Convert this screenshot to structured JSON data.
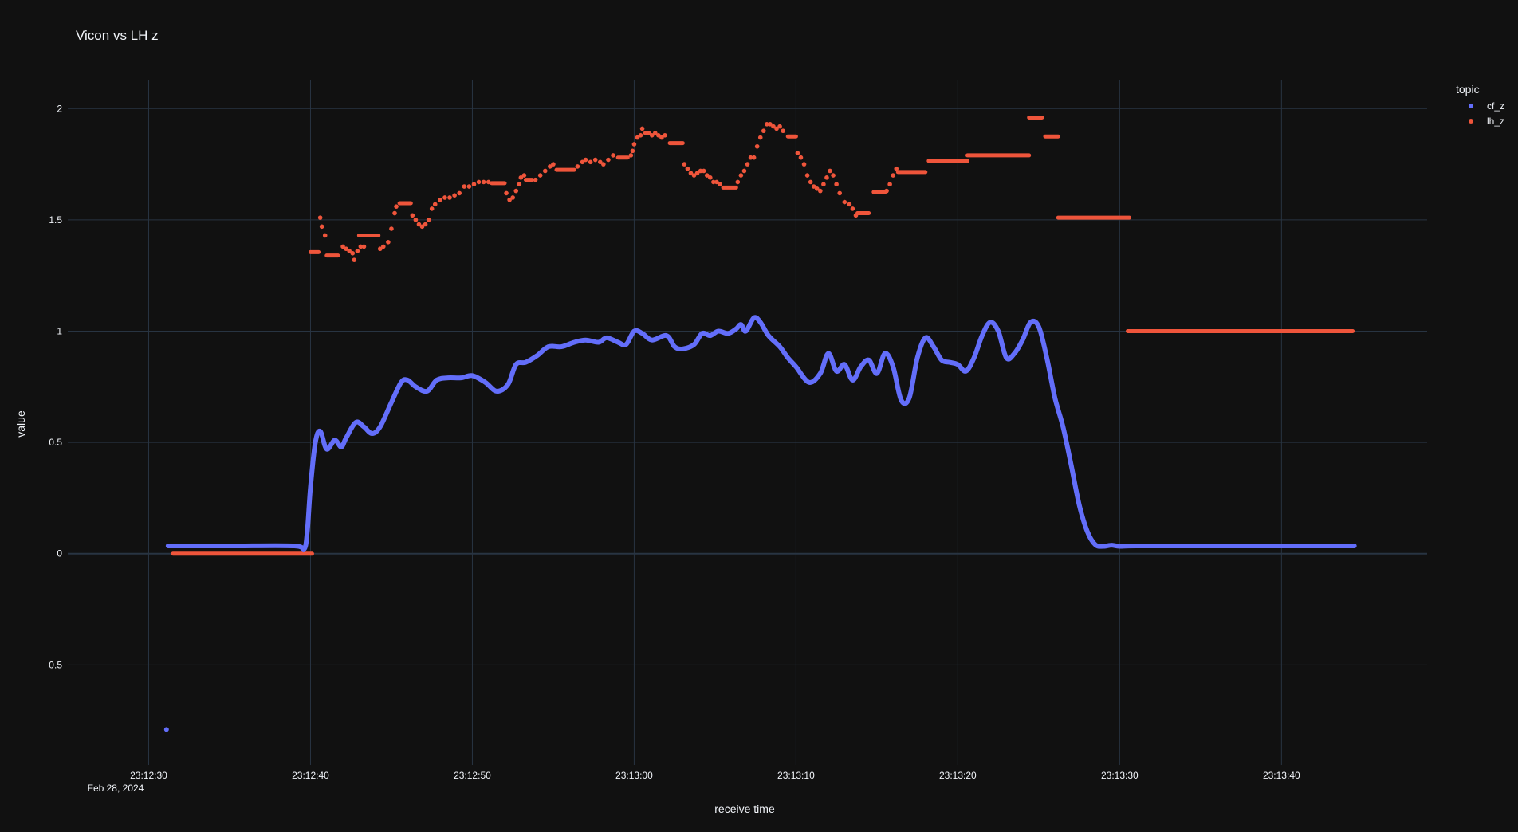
{
  "chart_data": {
    "type": "scatter",
    "title": "Vicon vs LH z",
    "xlabel": "receive time",
    "ylabel": "value",
    "x_date_label": "Feb 28, 2024",
    "xlim": [
      "23:12:25",
      "23:13:49"
    ],
    "ylim": [
      -0.95,
      2.13
    ],
    "x_ticks": [
      "23:12:30",
      "23:12:40",
      "23:12:50",
      "23:13:00",
      "23:13:10",
      "23:13:20",
      "23:13:30",
      "23:13:40"
    ],
    "y_ticks": [
      2,
      1.5,
      1,
      0.5,
      0,
      -0.5
    ],
    "y_tick_labels": [
      "2",
      "1.5",
      "1",
      "0.5",
      "0",
      "−0.5"
    ],
    "grid": true,
    "legend_title": "topic",
    "legend_position": "top-right",
    "colors": {
      "background": "#111111",
      "grid": "#283442",
      "zeroline": "#283442",
      "cf_z": "#636efa",
      "lh_z": "#ef553b"
    },
    "series": [
      {
        "name": "cf_z",
        "color": "#636efa",
        "points": [
          [
            "23:12:31.1",
            -0.79
          ],
          [
            "23:12:31.2",
            0.035
          ],
          [
            "23:12:35.0",
            0.035
          ],
          [
            "23:12:39.0",
            0.035
          ],
          [
            "23:12:39.6",
            0.02
          ],
          [
            "23:12:39.8",
            0.1
          ],
          [
            "23:12:40.0",
            0.3
          ],
          [
            "23:12:40.3",
            0.5
          ],
          [
            "23:12:40.6",
            0.55
          ],
          [
            "23:12:41.0",
            0.47
          ],
          [
            "23:12:41.5",
            0.51
          ],
          [
            "23:12:41.9",
            0.48
          ],
          [
            "23:12:42.2",
            0.52
          ],
          [
            "23:12:42.8",
            0.59
          ],
          [
            "23:12:43.3",
            0.57
          ],
          [
            "23:12:43.8",
            0.54
          ],
          [
            "23:12:44.3",
            0.57
          ],
          [
            "23:12:45.0",
            0.68
          ],
          [
            "23:12:45.6",
            0.77
          ],
          [
            "23:12:46.0",
            0.78
          ],
          [
            "23:12:46.5",
            0.75
          ],
          [
            "23:12:47.2",
            0.73
          ],
          [
            "23:12:47.8",
            0.78
          ],
          [
            "23:12:48.5",
            0.79
          ],
          [
            "23:12:49.3",
            0.79
          ],
          [
            "23:12:50.0",
            0.8
          ],
          [
            "23:12:50.8",
            0.77
          ],
          [
            "23:12:51.5",
            0.73
          ],
          [
            "23:12:52.2",
            0.76
          ],
          [
            "23:12:52.7",
            0.85
          ],
          [
            "23:12:53.3",
            0.86
          ],
          [
            "23:12:54.0",
            0.89
          ],
          [
            "23:12:54.7",
            0.93
          ],
          [
            "23:12:55.5",
            0.93
          ],
          [
            "23:12:56.3",
            0.95
          ],
          [
            "23:12:57.0",
            0.96
          ],
          [
            "23:12:57.8",
            0.95
          ],
          [
            "23:12:58.3",
            0.97
          ],
          [
            "23:12:59.0",
            0.95
          ],
          [
            "23:12:59.5",
            0.94
          ],
          [
            "23:13:00.0",
            1.0
          ],
          [
            "23:13:00.5",
            0.99
          ],
          [
            "23:13:01.1",
            0.96
          ],
          [
            "23:13:02.0",
            0.98
          ],
          [
            "23:13:02.5",
            0.93
          ],
          [
            "23:13:03.0",
            0.92
          ],
          [
            "23:13:03.7",
            0.94
          ],
          [
            "23:13:04.2",
            0.99
          ],
          [
            "23:13:04.7",
            0.98
          ],
          [
            "23:13:05.2",
            1.0
          ],
          [
            "23:13:05.8",
            0.99
          ],
          [
            "23:13:06.3",
            1.01
          ],
          [
            "23:13:06.6",
            1.03
          ],
          [
            "23:13:06.9",
            1.0
          ],
          [
            "23:13:07.4",
            1.06
          ],
          [
            "23:13:07.8",
            1.04
          ],
          [
            "23:13:08.3",
            0.98
          ],
          [
            "23:13:09.0",
            0.93
          ],
          [
            "23:13:09.5",
            0.88
          ],
          [
            "23:13:10.0",
            0.84
          ],
          [
            "23:13:10.8",
            0.77
          ],
          [
            "23:13:11.5",
            0.81
          ],
          [
            "23:13:12.0",
            0.9
          ],
          [
            "23:13:12.5",
            0.82
          ],
          [
            "23:13:13.0",
            0.85
          ],
          [
            "23:13:13.5",
            0.78
          ],
          [
            "23:13:14.0",
            0.84
          ],
          [
            "23:13:14.5",
            0.87
          ],
          [
            "23:13:15.0",
            0.81
          ],
          [
            "23:13:15.5",
            0.9
          ],
          [
            "23:13:16.0",
            0.84
          ],
          [
            "23:13:16.5",
            0.69
          ],
          [
            "23:13:17.0",
            0.7
          ],
          [
            "23:13:17.5",
            0.88
          ],
          [
            "23:13:18.0",
            0.97
          ],
          [
            "23:13:18.5",
            0.93
          ],
          [
            "23:13:19.0",
            0.87
          ],
          [
            "23:13:19.5",
            0.86
          ],
          [
            "23:13:20.0",
            0.85
          ],
          [
            "23:13:20.5",
            0.82
          ],
          [
            "23:13:21.0",
            0.88
          ],
          [
            "23:13:21.5",
            0.98
          ],
          [
            "23:13:22.0",
            1.04
          ],
          [
            "23:13:22.5",
            1.0
          ],
          [
            "23:13:23.0",
            0.88
          ],
          [
            "23:13:23.5",
            0.9
          ],
          [
            "23:13:24.0",
            0.96
          ],
          [
            "23:13:24.5",
            1.04
          ],
          [
            "23:13:25.0",
            1.02
          ],
          [
            "23:13:25.5",
            0.88
          ],
          [
            "23:13:26.0",
            0.7
          ],
          [
            "23:13:26.5",
            0.57
          ],
          [
            "23:13:27.0",
            0.4
          ],
          [
            "23:13:27.5",
            0.22
          ],
          [
            "23:13:28.0",
            0.1
          ],
          [
            "23:13:28.5",
            0.04
          ],
          [
            "23:13:29.0",
            0.033
          ],
          [
            "23:13:29.5",
            0.038
          ],
          [
            "23:13:30.0",
            0.033
          ],
          [
            "23:13:31.0",
            0.035
          ],
          [
            "23:13:35.0",
            0.035
          ],
          [
            "23:13:40.0",
            0.035
          ],
          [
            "23:13:44.5",
            0.035
          ]
        ]
      },
      {
        "name": "lh_z",
        "color": "#ef553b",
        "segments": [
          [
            [
              "23:12:31.5",
              0.0
            ],
            [
              "23:12:40.1",
              0.0
            ]
          ],
          [
            [
              "23:12:40.0",
              1.355
            ],
            [
              "23:12:40.5",
              1.355
            ]
          ],
          [
            [
              "23:12:41.0",
              1.34
            ],
            [
              "23:12:41.7",
              1.34
            ]
          ],
          [
            [
              "23:12:43.0",
              1.43
            ],
            [
              "23:12:44.2",
              1.43
            ]
          ],
          [
            [
              "23:12:45.5",
              1.575
            ],
            [
              "23:12:46.2",
              1.575
            ]
          ],
          [
            [
              "23:12:51.2",
              1.665
            ],
            [
              "23:12:52.0",
              1.665
            ]
          ],
          [
            [
              "23:12:53.3",
              1.68
            ],
            [
              "23:12:53.7",
              1.68
            ]
          ],
          [
            [
              "23:12:55.2",
              1.725
            ],
            [
              "23:12:56.3",
              1.725
            ]
          ],
          [
            [
              "23:12:59.0",
              1.78
            ],
            [
              "23:12:59.6",
              1.78
            ]
          ],
          [
            [
              "23:13:02.2",
              1.845
            ],
            [
              "23:13:03.0",
              1.845
            ]
          ],
          [
            [
              "23:13:05.5",
              1.645
            ],
            [
              "23:13:06.3",
              1.645
            ]
          ],
          [
            [
              "23:13:09.5",
              1.875
            ],
            [
              "23:13:10.0",
              1.875
            ]
          ],
          [
            [
              "23:13:13.8",
              1.53
            ],
            [
              "23:13:14.5",
              1.53
            ]
          ],
          [
            [
              "23:13:14.8",
              1.625
            ],
            [
              "23:13:15.5",
              1.625
            ]
          ],
          [
            [
              "23:13:16.3",
              1.715
            ],
            [
              "23:13:18.0",
              1.715
            ]
          ],
          [
            [
              "23:13:18.2",
              1.765
            ],
            [
              "23:13:20.6",
              1.765
            ]
          ],
          [
            [
              "23:13:20.6",
              1.79
            ],
            [
              "23:13:24.4",
              1.79
            ]
          ],
          [
            [
              "23:13:24.4",
              1.96
            ],
            [
              "23:13:25.2",
              1.96
            ]
          ],
          [
            [
              "23:13:25.4",
              1.875
            ],
            [
              "23:13:26.2",
              1.875
            ]
          ],
          [
            [
              "23:13:26.2",
              1.51
            ],
            [
              "23:13:30.6",
              1.51
            ]
          ],
          [
            [
              "23:13:30.5",
              1.0
            ],
            [
              "23:13:44.4",
              1.0
            ]
          ]
        ],
        "points": [
          [
            "23:12:40.6",
            1.51
          ],
          [
            "23:12:40.7",
            1.47
          ],
          [
            "23:12:40.9",
            1.43
          ],
          [
            "23:12:42.0",
            1.38
          ],
          [
            "23:12:42.2",
            1.37
          ],
          [
            "23:12:42.4",
            1.36
          ],
          [
            "23:12:42.6",
            1.35
          ],
          [
            "23:12:42.7",
            1.32
          ],
          [
            "23:12:42.9",
            1.36
          ],
          [
            "23:12:43.1",
            1.38
          ],
          [
            "23:12:43.3",
            1.38
          ],
          [
            "23:12:44.3",
            1.37
          ],
          [
            "23:12:44.5",
            1.38
          ],
          [
            "23:12:44.8",
            1.4
          ],
          [
            "23:12:45.0",
            1.46
          ],
          [
            "23:12:45.2",
            1.53
          ],
          [
            "23:12:45.3",
            1.56
          ],
          [
            "23:12:46.3",
            1.52
          ],
          [
            "23:12:46.5",
            1.5
          ],
          [
            "23:12:46.7",
            1.48
          ],
          [
            "23:12:46.9",
            1.47
          ],
          [
            "23:12:47.1",
            1.48
          ],
          [
            "23:12:47.3",
            1.5
          ],
          [
            "23:12:47.5",
            1.55
          ],
          [
            "23:12:47.7",
            1.57
          ],
          [
            "23:12:48.0",
            1.59
          ],
          [
            "23:12:48.3",
            1.6
          ],
          [
            "23:12:48.6",
            1.6
          ],
          [
            "23:12:48.9",
            1.61
          ],
          [
            "23:12:49.2",
            1.62
          ],
          [
            "23:12:49.5",
            1.65
          ],
          [
            "23:12:49.8",
            1.65
          ],
          [
            "23:12:50.1",
            1.66
          ],
          [
            "23:12:50.4",
            1.67
          ],
          [
            "23:12:50.7",
            1.67
          ],
          [
            "23:12:51.0",
            1.67
          ],
          [
            "23:12:52.1",
            1.62
          ],
          [
            "23:12:52.3",
            1.59
          ],
          [
            "23:12:52.5",
            1.6
          ],
          [
            "23:12:52.7",
            1.63
          ],
          [
            "23:12:52.9",
            1.66
          ],
          [
            "23:12:53.0",
            1.69
          ],
          [
            "23:12:53.2",
            1.7
          ],
          [
            "23:12:53.9",
            1.68
          ],
          [
            "23:12:54.2",
            1.7
          ],
          [
            "23:12:54.5",
            1.72
          ],
          [
            "23:12:54.8",
            1.74
          ],
          [
            "23:12:55.0",
            1.75
          ],
          [
            "23:12:56.5",
            1.74
          ],
          [
            "23:12:56.8",
            1.76
          ],
          [
            "23:12:57.0",
            1.77
          ],
          [
            "23:12:57.3",
            1.76
          ],
          [
            "23:12:57.6",
            1.77
          ],
          [
            "23:12:57.9",
            1.76
          ],
          [
            "23:12:58.1",
            1.75
          ],
          [
            "23:12:58.4",
            1.77
          ],
          [
            "23:12:58.7",
            1.79
          ],
          [
            "23:12:59.8",
            1.79
          ],
          [
            "23:12:59.9",
            1.81
          ],
          [
            "23:13:00.0",
            1.84
          ],
          [
            "23:13:00.2",
            1.87
          ],
          [
            "23:13:00.4",
            1.88
          ],
          [
            "23:13:00.5",
            1.91
          ],
          [
            "23:13:00.7",
            1.89
          ],
          [
            "23:13:00.9",
            1.89
          ],
          [
            "23:13:01.1",
            1.88
          ],
          [
            "23:13:01.3",
            1.89
          ],
          [
            "23:13:01.5",
            1.88
          ],
          [
            "23:13:01.7",
            1.87
          ],
          [
            "23:13:01.9",
            1.88
          ],
          [
            "23:13:03.1",
            1.75
          ],
          [
            "23:13:03.3",
            1.73
          ],
          [
            "23:13:03.5",
            1.71
          ],
          [
            "23:13:03.7",
            1.7
          ],
          [
            "23:13:03.9",
            1.71
          ],
          [
            "23:13:04.1",
            1.72
          ],
          [
            "23:13:04.3",
            1.72
          ],
          [
            "23:13:04.5",
            1.7
          ],
          [
            "23:13:04.7",
            1.69
          ],
          [
            "23:13:04.9",
            1.67
          ],
          [
            "23:13:05.1",
            1.67
          ],
          [
            "23:13:05.3",
            1.66
          ],
          [
            "23:13:06.4",
            1.67
          ],
          [
            "23:13:06.6",
            1.7
          ],
          [
            "23:13:06.8",
            1.72
          ],
          [
            "23:13:07.0",
            1.75
          ],
          [
            "23:13:07.2",
            1.78
          ],
          [
            "23:13:07.4",
            1.78
          ],
          [
            "23:13:07.6",
            1.83
          ],
          [
            "23:13:07.8",
            1.87
          ],
          [
            "23:13:08.0",
            1.9
          ],
          [
            "23:13:08.2",
            1.93
          ],
          [
            "23:13:08.4",
            1.93
          ],
          [
            "23:13:08.6",
            1.92
          ],
          [
            "23:13:08.8",
            1.91
          ],
          [
            "23:13:09.0",
            1.92
          ],
          [
            "23:13:09.2",
            1.9
          ],
          [
            "23:13:10.1",
            1.8
          ],
          [
            "23:13:10.3",
            1.78
          ],
          [
            "23:13:10.5",
            1.75
          ],
          [
            "23:13:10.7",
            1.7
          ],
          [
            "23:13:10.9",
            1.67
          ],
          [
            "23:13:11.1",
            1.65
          ],
          [
            "23:13:11.3",
            1.64
          ],
          [
            "23:13:11.5",
            1.63
          ],
          [
            "23:13:11.7",
            1.66
          ],
          [
            "23:13:11.9",
            1.69
          ],
          [
            "23:13:12.1",
            1.72
          ],
          [
            "23:13:12.3",
            1.7
          ],
          [
            "23:13:12.5",
            1.66
          ],
          [
            "23:13:12.7",
            1.62
          ],
          [
            "23:13:13.0",
            1.58
          ],
          [
            "23:13:13.3",
            1.57
          ],
          [
            "23:13:13.5",
            1.55
          ],
          [
            "23:13:13.7",
            1.52
          ],
          [
            "23:13:15.6",
            1.63
          ],
          [
            "23:13:15.8",
            1.66
          ],
          [
            "23:13:16.0",
            1.7
          ],
          [
            "23:13:16.2",
            1.73
          ]
        ]
      }
    ]
  }
}
